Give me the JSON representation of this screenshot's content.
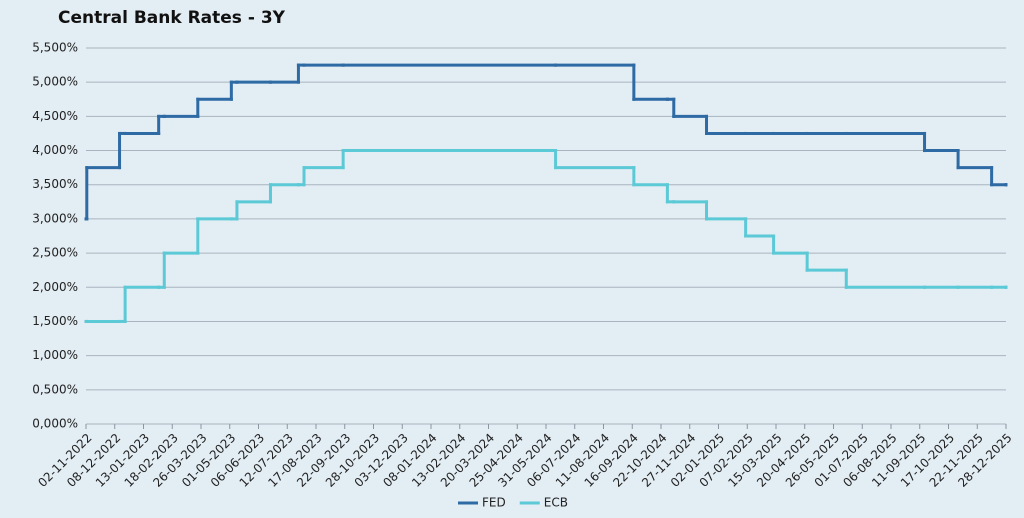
{
  "chart_data": {
    "type": "line",
    "drawstyle": "steps-post",
    "title": "Central Bank Rates - 3Y",
    "x": [
      "02-11-2022",
      "03-11-2022",
      "14-12-2022",
      "21-12-2022",
      "01-02-2023",
      "08-02-2023",
      "22-03-2023",
      "03-05-2023",
      "10-05-2023",
      "21-06-2023",
      "26-07-2023",
      "02-08-2023",
      "20-09-2023",
      "12-06-2024",
      "18-09-2024",
      "30-10-2024",
      "07-11-2024",
      "18-12-2024",
      "05-02-2025",
      "12-03-2025",
      "23-04-2025",
      "11-06-2025",
      "17-09-2025",
      "29-10-2025",
      "10-12-2025",
      "28-12-2025"
    ],
    "series": [
      {
        "name": "FED",
        "color": "#2e6aa3",
        "values": [
          3.0,
          3.75,
          4.25,
          4.25,
          4.5,
          4.5,
          4.75,
          5.0,
          5.0,
          5.0,
          5.25,
          5.25,
          5.25,
          5.25,
          4.75,
          4.75,
          4.5,
          4.25,
          4.25,
          4.25,
          4.25,
          4.25,
          4.0,
          3.75,
          3.5,
          3.5
        ]
      },
      {
        "name": "ECB",
        "color": "#5cc9d6",
        "values": [
          1.5,
          1.5,
          1.5,
          2.0,
          2.0,
          2.5,
          3.0,
          3.0,
          3.25,
          3.5,
          3.5,
          3.75,
          4.0,
          3.75,
          3.5,
          3.25,
          3.25,
          3.0,
          2.75,
          2.5,
          2.25,
          2.0,
          2.0,
          2.0,
          2.0,
          2.0
        ]
      }
    ],
    "xlim": [
      "02-11-2022",
      "28-12-2025"
    ],
    "xticks": [
      "02-11-2022",
      "08-12-2022",
      "13-01-2023",
      "18-02-2023",
      "26-03-2023",
      "01-05-2023",
      "06-06-2023",
      "12-07-2023",
      "17-08-2023",
      "22-09-2023",
      "28-10-2023",
      "03-12-2023",
      "08-01-2024",
      "13-02-2024",
      "20-03-2024",
      "25-04-2024",
      "31-05-2024",
      "06-07-2024",
      "11-08-2024",
      "16-09-2024",
      "22-10-2024",
      "27-11-2024",
      "02-01-2025",
      "07-02-2025",
      "15-03-2025",
      "20-04-2025",
      "26-05-2025",
      "01-07-2025",
      "06-08-2025",
      "11-09-2025",
      "17-10-2025",
      "22-11-2025",
      "28-12-2025"
    ],
    "ylim": [
      0,
      5.5
    ],
    "yticks": [
      {
        "value": 0,
        "label": "0,000%"
      },
      {
        "value": 0.5,
        "label": "0,500%"
      },
      {
        "value": 1,
        "label": "1,000%"
      },
      {
        "value": 1.5,
        "label": "1,500%"
      },
      {
        "value": 2,
        "label": "2,000%"
      },
      {
        "value": 2.5,
        "label": "2,500%"
      },
      {
        "value": 3,
        "label": "3,000%"
      },
      {
        "value": 3.5,
        "label": "3,500%"
      },
      {
        "value": 4,
        "label": "4,000%"
      },
      {
        "value": 4.5,
        "label": "4,500%"
      },
      {
        "value": 5,
        "label": "5,000%"
      },
      {
        "value": 5.5,
        "label": "5,500%"
      }
    ],
    "grid": true,
    "legend": "bottom"
  }
}
